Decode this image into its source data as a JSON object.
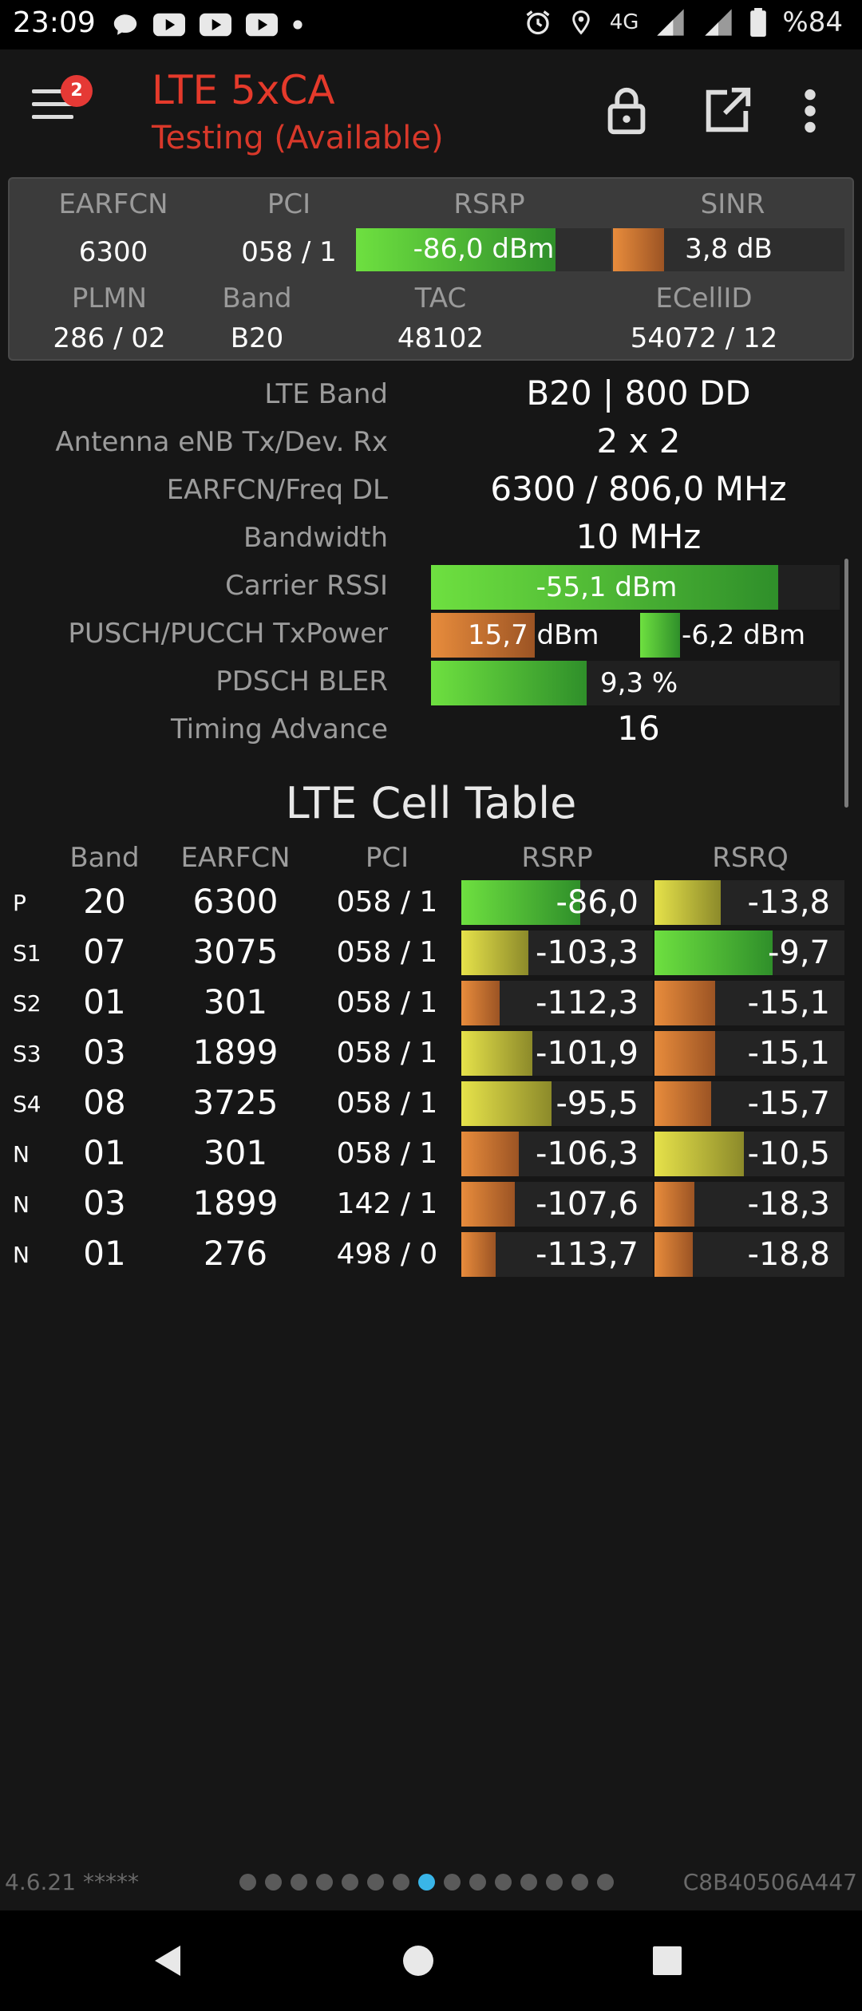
{
  "statusbar": {
    "time": "23:09",
    "network": "4G",
    "battery": "%84"
  },
  "toolbar": {
    "title": "LTE 5xCA",
    "subtitle": "Testing (Available)",
    "badge_count": "2"
  },
  "summary": {
    "headers": {
      "earfcn": "EARFCN",
      "pci": "PCI",
      "rsrp": "RSRP",
      "sinr": "SINR",
      "plmn": "PLMN",
      "band": "Band",
      "tac": "TAC",
      "ecellid": "ECellID"
    },
    "earfcn": "6300",
    "pci": "058 / 1",
    "rsrp": {
      "text": "-86,0 dBm",
      "level": 0.78,
      "color": "green"
    },
    "sinr": {
      "text": "3,8 dB",
      "level": 0.22,
      "color": "orange"
    },
    "plmn": "286 / 02",
    "band": "B20",
    "tac": "48102",
    "ecellid": "54072 / 12"
  },
  "details": [
    {
      "label": "LTE Band",
      "value": "B20 | 800 DD"
    },
    {
      "label": "Antenna eNB Tx/Dev. Rx",
      "value": "2 x 2"
    },
    {
      "label": "EARFCN/Freq DL",
      "value": "6300 / 806,0 MHz"
    },
    {
      "label": "Bandwidth",
      "value": "10 MHz"
    },
    {
      "label": "Carrier RSSI",
      "value": "-55,1 dBm",
      "level": 0.85,
      "color": "green"
    },
    {
      "label": "PUSCH/PUCCH TxPower",
      "pusch": "15,7 dBm",
      "pusch_level": 0.5,
      "pucch": "-6,2 dBm",
      "pucch_level": 0.2
    },
    {
      "label": "PDSCH BLER",
      "value": "9,3 %",
      "level": 0.38,
      "color": "green"
    },
    {
      "label": "Timing Advance",
      "value": "16"
    }
  ],
  "cell_table": {
    "title": "LTE Cell Table",
    "headers": [
      "Band",
      "EARFCN",
      "PCI",
      "RSRP",
      "RSRQ"
    ],
    "rows": [
      {
        "type": "P",
        "band": "20",
        "earfcn": "6300",
        "pci": "058 / 1",
        "rsrp": "-86,0",
        "rsrp_level": 0.62,
        "rsrp_color": "green",
        "rsrq": "-13,8",
        "rsrq_level": 0.35,
        "rsrq_color": "yellow"
      },
      {
        "type": "S1",
        "band": "07",
        "earfcn": "3075",
        "pci": "058 / 1",
        "rsrp": "-103,3",
        "rsrp_level": 0.35,
        "rsrp_color": "yellow",
        "rsrq": "-9,7",
        "rsrq_level": 0.62,
        "rsrq_color": "green"
      },
      {
        "type": "S2",
        "band": "01",
        "earfcn": "301",
        "pci": "058 / 1",
        "rsrp": "-112,3",
        "rsrp_level": 0.2,
        "rsrp_color": "orange",
        "rsrq": "-15,1",
        "rsrq_level": 0.32,
        "rsrq_color": "orange"
      },
      {
        "type": "S3",
        "band": "03",
        "earfcn": "1899",
        "pci": "058 / 1",
        "rsrp": "-101,9",
        "rsrp_level": 0.37,
        "rsrp_color": "yellow",
        "rsrq": "-15,1",
        "rsrq_level": 0.32,
        "rsrq_color": "orange"
      },
      {
        "type": "S4",
        "band": "08",
        "earfcn": "3725",
        "pci": "058 / 1",
        "rsrp": "-95,5",
        "rsrp_level": 0.47,
        "rsrp_color": "yellow",
        "rsrq": "-15,7",
        "rsrq_level": 0.3,
        "rsrq_color": "orange"
      },
      {
        "type": "N",
        "band": "01",
        "earfcn": "301",
        "pci": "058 / 1",
        "rsrp": "-106,3",
        "rsrp_level": 0.3,
        "rsrp_color": "orange",
        "rsrq": "-10,5",
        "rsrq_level": 0.47,
        "rsrq_color": "yellow"
      },
      {
        "type": "N",
        "band": "03",
        "earfcn": "1899",
        "pci": "142 / 1",
        "rsrp": "-107,6",
        "rsrp_level": 0.28,
        "rsrp_color": "orange",
        "rsrq": "-18,3",
        "rsrq_level": 0.21,
        "rsrq_color": "orange"
      },
      {
        "type": "N",
        "band": "01",
        "earfcn": "276",
        "pci": "498 / 0",
        "rsrp": "-113,7",
        "rsrp_level": 0.18,
        "rsrp_color": "orange",
        "rsrq": "-18,8",
        "rsrq_level": 0.2,
        "rsrq_color": "orange"
      }
    ]
  },
  "footer": {
    "version": "4.6.21 *****",
    "device_id": "C8B40506A447",
    "page_count": 15,
    "active_page": 7
  },
  "colors": {
    "green": "#4fd13a",
    "yellow": "#d9dc3a",
    "orange": "#e0823a",
    "accent": "#e53a2b",
    "dot_active": "#39b5e8"
  }
}
